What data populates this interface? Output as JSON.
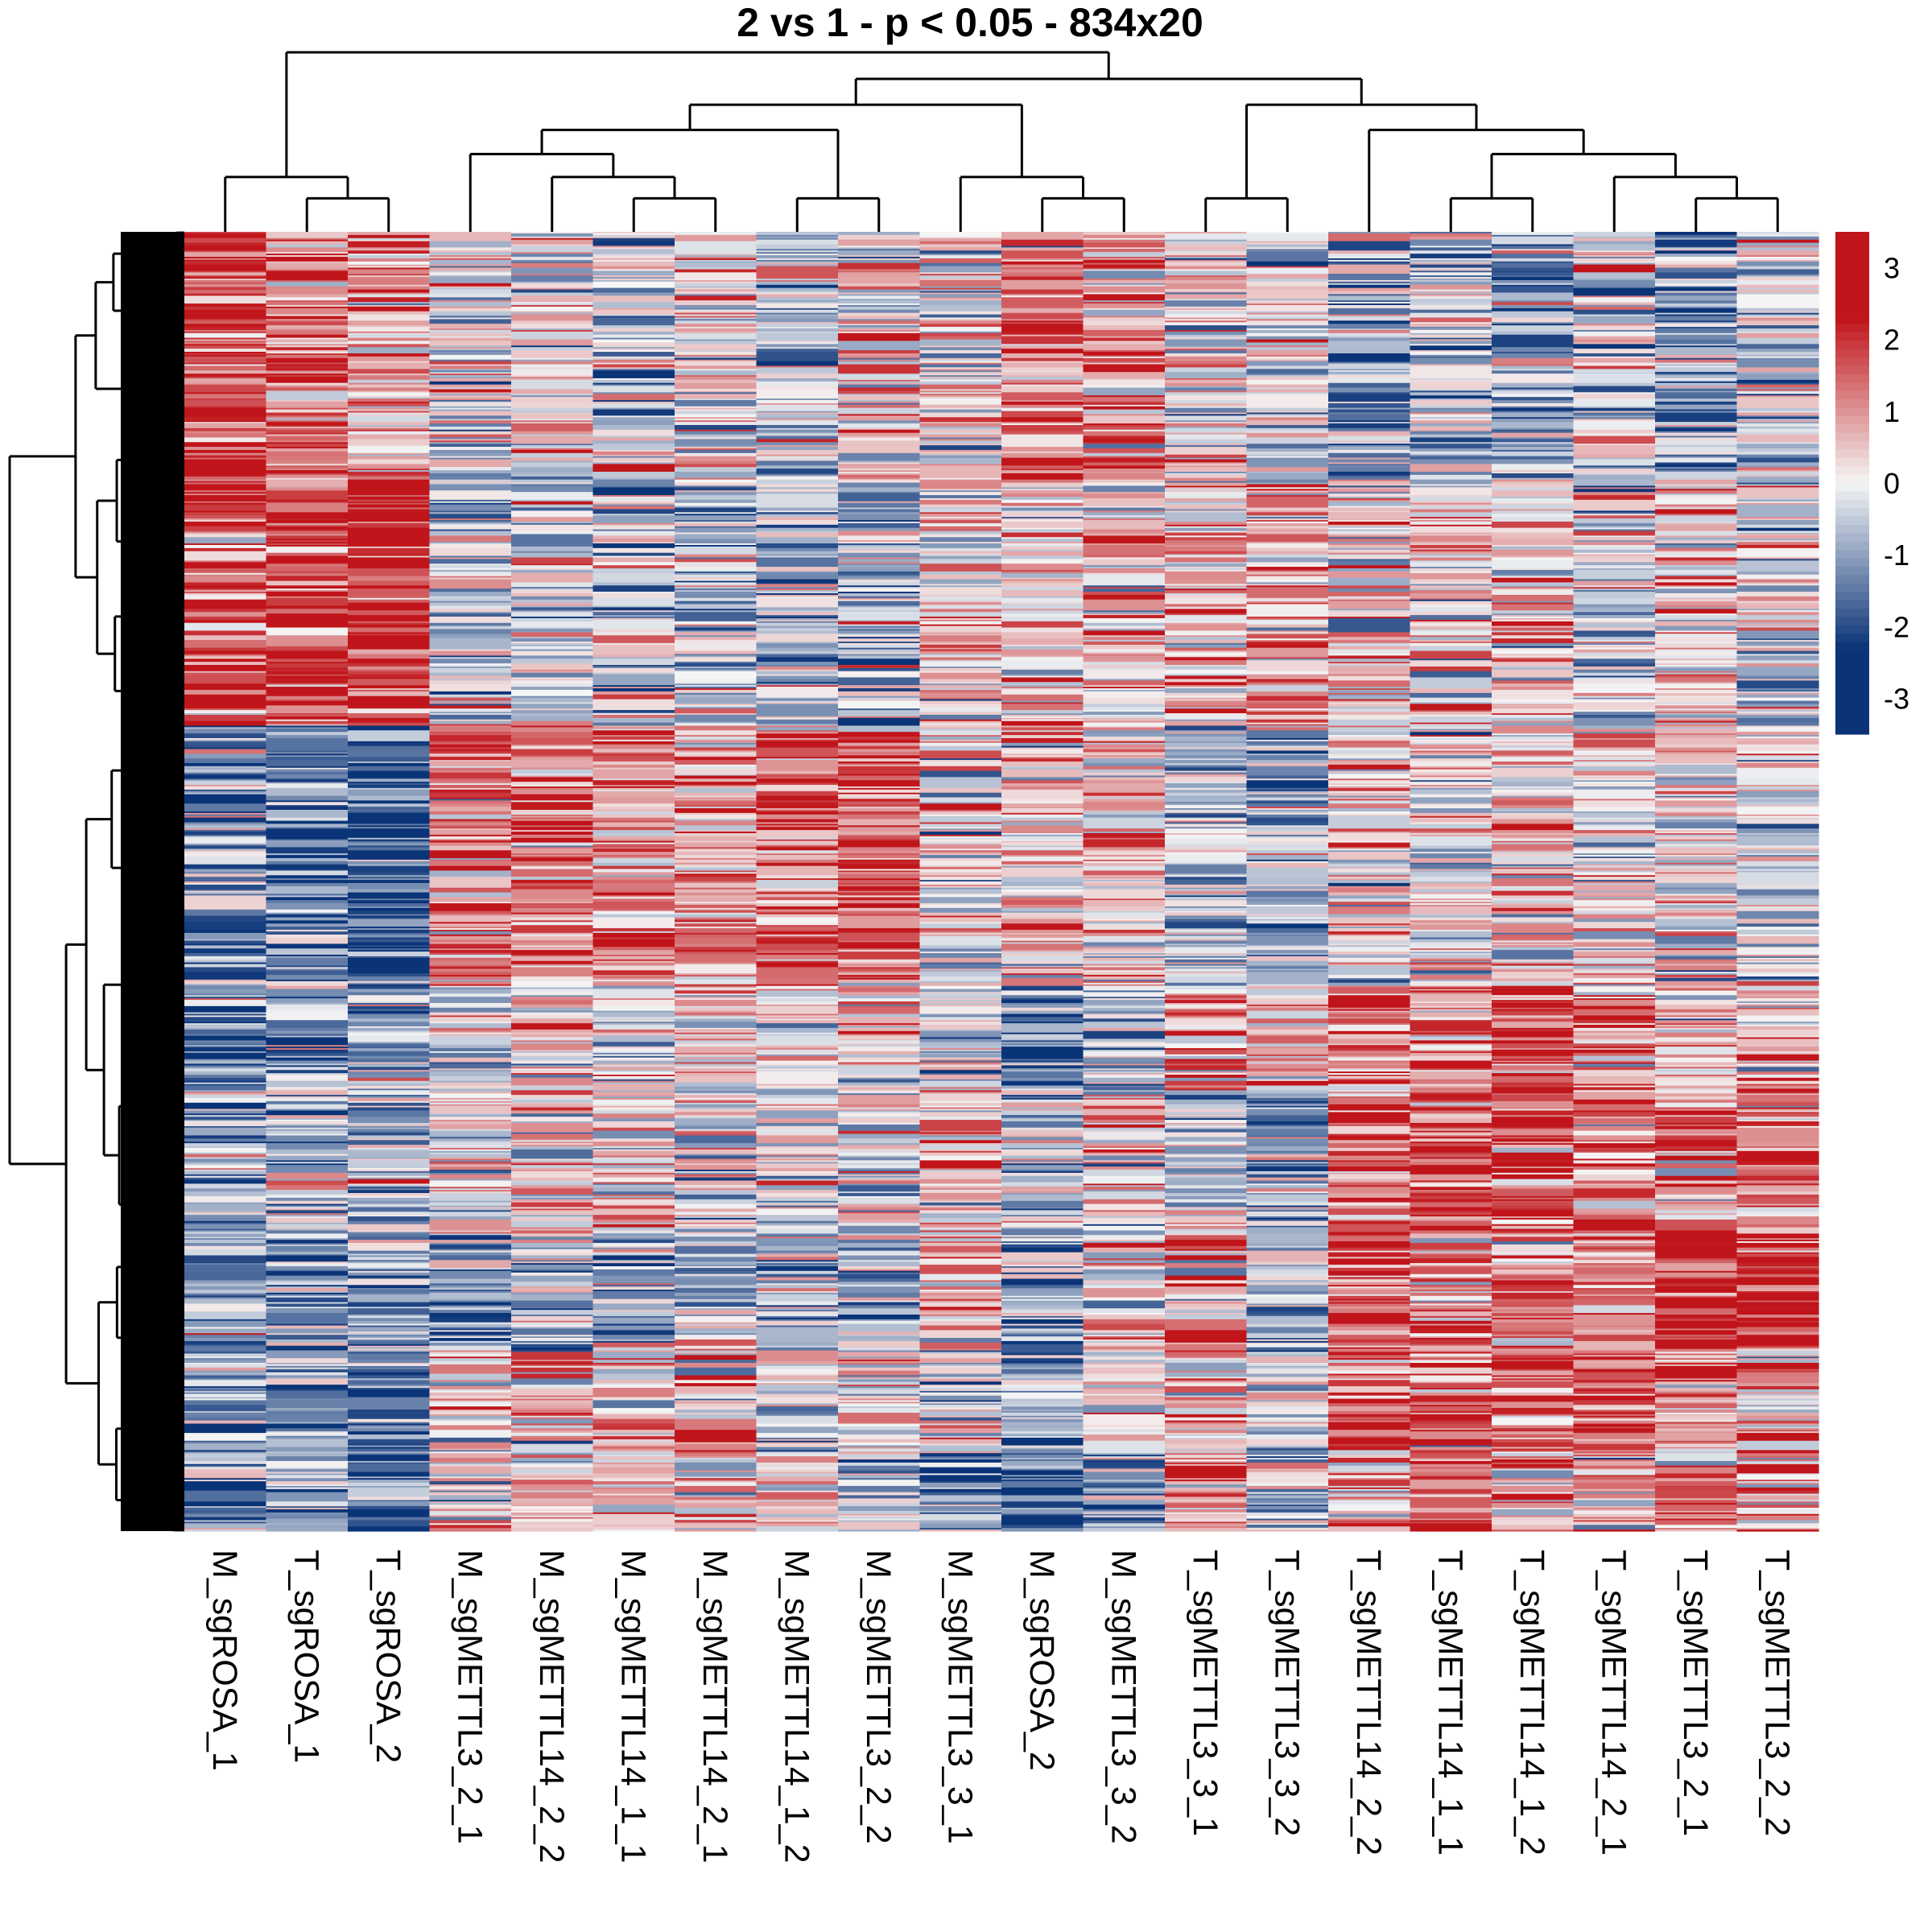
{
  "chart_data": {
    "type": "heatmap",
    "title": "2 vs 1 - p < 0.05 - 834x20",
    "n_rows": 834,
    "n_cols": 20,
    "columns": [
      "M_sgROSA_1",
      "T_sgROSA_1",
      "T_sgROSA_2",
      "M_sgMETTL3_2_1",
      "M_sgMETTL14_2_2",
      "M_sgMETTL14_1_1",
      "M_sgMETTL14_2_1",
      "M_sgMETTL14_1_2",
      "M_sgMETTL3_2_2",
      "M_sgMETTL3_3_1",
      "M_sgROSA_2",
      "M_sgMETTL3_3_2",
      "T_sgMETTL3_3_1",
      "T_sgMETTL3_3_2",
      "T_sgMETTL14_2_2",
      "T_sgMETTL14_1_1",
      "T_sgMETTL14_1_2",
      "T_sgMETTL14_2_1",
      "T_sgMETTL3_2_1",
      "T_sgMETTL3_2_2"
    ],
    "row_blocks_fraction": [
      0.0,
      0.19,
      0.38,
      0.58,
      0.66,
      0.77,
      0.86,
      0.94,
      1.0
    ],
    "block_means": [
      [
        1.9,
        1.3,
        0.8,
        -0.2,
        0.1,
        -0.3,
        0.1,
        -0.6,
        0.2,
        0.0,
        1.3,
        1.0,
        0.2,
        -0.2,
        -1.0,
        -0.5,
        -1.0,
        -0.4,
        -0.9,
        -0.3
      ],
      [
        1.5,
        1.8,
        2.1,
        -0.5,
        -0.4,
        -0.5,
        -0.5,
        -0.6,
        -0.6,
        0.3,
        0.2,
        0.3,
        0.6,
        0.7,
        0.3,
        0.2,
        0.2,
        -0.3,
        0.4,
        -0.2
      ],
      [
        -1.3,
        -1.5,
        -2.1,
        1.2,
        1.1,
        1.0,
        0.9,
        1.4,
        1.5,
        0.1,
        0.3,
        0.5,
        -0.6,
        -0.6,
        0.1,
        0.1,
        0.3,
        0.1,
        0.1,
        -0.1
      ],
      [
        -1.6,
        -1.0,
        -1.0,
        -0.1,
        0.1,
        0.0,
        0.3,
        0.3,
        0.3,
        -0.4,
        -1.6,
        -0.8,
        1.0,
        0.8,
        1.2,
        1.1,
        1.5,
        0.9,
        0.5,
        0.8
      ],
      [
        -0.9,
        -0.6,
        -0.6,
        0.0,
        0.2,
        0.1,
        -0.1,
        0.2,
        -0.2,
        0.8,
        -0.8,
        0.2,
        -0.5,
        -1.0,
        1.4,
        2.0,
        1.7,
        1.4,
        0.9,
        0.9
      ],
      [
        -1.0,
        -1.0,
        -0.8,
        -0.9,
        -0.9,
        -0.9,
        -0.9,
        -0.9,
        -0.9,
        0.9,
        -0.9,
        0.3,
        0.6,
        -0.9,
        1.3,
        1.2,
        1.2,
        1.0,
        2.2,
        2.1
      ],
      [
        -1.2,
        -1.1,
        -1.6,
        0.5,
        0.6,
        0.5,
        0.5,
        -0.5,
        -0.1,
        -0.1,
        -0.9,
        0.1,
        0.3,
        -0.3,
        1.5,
        1.6,
        1.4,
        1.6,
        0.8,
        0.6
      ],
      [
        -1.5,
        -1.0,
        -1.2,
        0.3,
        0.3,
        0.4,
        0.1,
        0.2,
        -0.4,
        -1.2,
        -1.8,
        -1.3,
        0.8,
        -0.4,
        0.6,
        1.3,
        1.0,
        0.6,
        1.1,
        0.5
      ]
    ],
    "color_scale": {
      "min": -3.5,
      "max": 3.5,
      "low_color": "#0b3478",
      "mid_color": "#f5f5f5",
      "high_color": "#c0151a",
      "ticks": [
        3,
        2,
        1,
        0,
        -1,
        -2,
        -3
      ]
    },
    "column_dendrogram": "((M_sgROSA_1,(T_sgROSA_1,T_sgROSA_2)),((((M_sgMETTL3_2_1,(M_sgMETTL14_2_2,(M_sgMETTL14_1_1,M_sgMETTL14_2_1))),(M_sgMETTL14_1_2,M_sgMETTL3_2_2)),(M_sgMETTL3_3_1,(M_sgROSA_2,M_sgMETTL3_3_2))),((T_sgMETTL3_3_1,T_sgMETTL3_3_2),(T_sgMETTL14_2_2,((T_sgMETTL14_1_1,T_sgMETTL14_1_2),(T_sgMETTL14_2_1,(T_sgMETTL3_2_1,T_sgMETTL3_2_2)))))))",
    "row_dendrogram": "hierarchical clustering of 834 rows (two main clusters)",
    "legend_placement": "right"
  }
}
